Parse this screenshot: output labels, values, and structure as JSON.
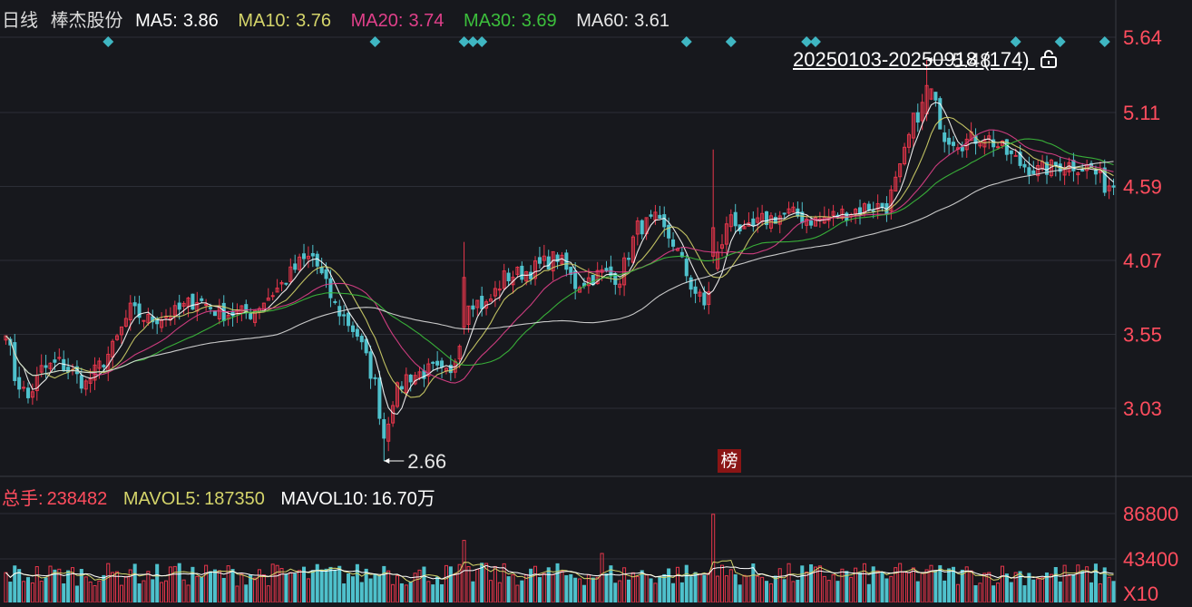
{
  "header": {
    "period": "日线",
    "stock_name": "棒杰股份",
    "ma5_label": "MA5:",
    "ma5": "3.86",
    "ma10_label": "MA10:",
    "ma10": "3.76",
    "ma20_label": "MA20:",
    "ma20": "3.74",
    "ma30_label": "MA30:",
    "ma30": "3.69",
    "ma60_label": "MA60:",
    "ma60": "3.61"
  },
  "range_label": "20250103-20250918 (174)",
  "badge": "榜",
  "volume_header": {
    "total_label": "总手:",
    "total": "238482",
    "mavol5_label": "MAVOL5:",
    "mavol5": "187350",
    "mavol10_label": "MAVOL10:",
    "mavol10": "16.70万"
  },
  "colors": {
    "background": "#17181d",
    "up": "#e8364b",
    "down": "#4fc1cc",
    "ma5": "#ffffff",
    "ma10": "#d4d46a",
    "ma20": "#e0408a",
    "ma30": "#3cbf3c",
    "ma60": "#dddddd",
    "axis_price": "#ff4d5e"
  },
  "chart_data": {
    "type": "candlestick",
    "price_axis": {
      "ticks": [
        "5.64",
        "5.11",
        "4.59",
        "4.07",
        "3.55",
        "3.03"
      ],
      "ylim": [
        2.66,
        5.64
      ]
    },
    "volume_axis": {
      "ticks": [
        "86800",
        "43400"
      ],
      "unit": "X10"
    },
    "annotations": {
      "high": "5.48",
      "low": "2.66"
    },
    "candle_count": 174,
    "events_at": [
      23,
      83,
      103,
      105,
      107,
      153,
      163,
      180,
      182,
      227,
      237,
      247
    ],
    "keypoints": [
      [
        0,
        3.6
      ],
      [
        2,
        3.25
      ],
      [
        5,
        3.1
      ],
      [
        8,
        3.3
      ],
      [
        12,
        3.35
      ],
      [
        18,
        3.2
      ],
      [
        24,
        3.45
      ],
      [
        28,
        3.72
      ],
      [
        32,
        3.65
      ],
      [
        38,
        3.7
      ],
      [
        43,
        3.8
      ],
      [
        48,
        3.7
      ],
      [
        55,
        3.7
      ],
      [
        62,
        3.9
      ],
      [
        66,
        4.05
      ],
      [
        69,
        4.1
      ],
      [
        74,
        3.75
      ],
      [
        79,
        3.55
      ],
      [
        83,
        3.2
      ],
      [
        85,
        2.82
      ],
      [
        87,
        3.1
      ],
      [
        90,
        3.25
      ],
      [
        96,
        3.3
      ],
      [
        100,
        3.25
      ],
      [
        104,
        3.8
      ],
      [
        108,
        3.75
      ],
      [
        112,
        3.95
      ],
      [
        118,
        4.0
      ],
      [
        124,
        4.1
      ],
      [
        128,
        3.9
      ],
      [
        134,
        3.98
      ],
      [
        138,
        3.95
      ],
      [
        142,
        4.3
      ],
      [
        146,
        4.35
      ],
      [
        150,
        4.2
      ],
      [
        154,
        3.9
      ],
      [
        157,
        3.75
      ],
      [
        160,
        4.1
      ],
      [
        163,
        4.4
      ],
      [
        166,
        4.25
      ],
      [
        170,
        4.35
      ],
      [
        176,
        4.4
      ],
      [
        182,
        4.35
      ],
      [
        188,
        4.4
      ],
      [
        194,
        4.45
      ],
      [
        198,
        4.45
      ],
      [
        201,
        4.7
      ],
      [
        204,
        5.05
      ],
      [
        208,
        5.25
      ],
      [
        211,
        4.95
      ],
      [
        215,
        4.9
      ],
      [
        220,
        4.95
      ],
      [
        224,
        4.85
      ],
      [
        228,
        4.75
      ],
      [
        232,
        4.7
      ],
      [
        238,
        4.75
      ],
      [
        244,
        4.72
      ],
      [
        247,
        4.6
      ]
    ]
  }
}
